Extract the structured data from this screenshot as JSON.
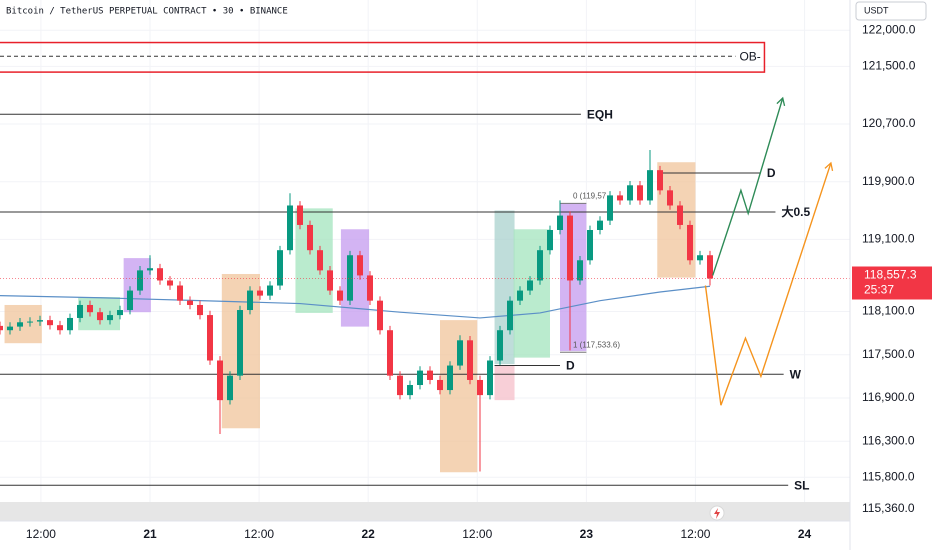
{
  "chart_data": {
    "type": "candlestick",
    "title": "Bitcoin / TetherUS PERPETUAL CONTRACT • 30 • BINANCE",
    "currency": "USDT",
    "up_color": "#089981",
    "down_color": "#f23645",
    "xlim": [
      -16.5,
      77
    ],
    "ylim": [
      115180,
      122420
    ],
    "xticks": [
      {
        "value": -12,
        "label": "12:00"
      },
      {
        "value": 0,
        "label": "21"
      },
      {
        "value": 12,
        "label": "12:00"
      },
      {
        "value": 24,
        "label": "22"
      },
      {
        "value": 36,
        "label": "12:00"
      },
      {
        "value": 48,
        "label": "23"
      },
      {
        "value": 60,
        "label": "12:00"
      },
      {
        "value": 72,
        "label": "24"
      }
    ],
    "yticks": [
      {
        "value": 122000,
        "label": "122,000.0"
      },
      {
        "value": 121500,
        "label": "121,500.0"
      },
      {
        "value": 120700,
        "label": "120,700.0"
      },
      {
        "value": 119900,
        "label": "119,900.0"
      },
      {
        "value": 119100,
        "label": "119,100.0"
      },
      {
        "value": 118100,
        "label": "118,100.0"
      },
      {
        "value": 117500,
        "label": "117,500.0"
      },
      {
        "value": 116900,
        "label": "116,900.0"
      },
      {
        "value": 116300,
        "label": "116,300.0"
      },
      {
        "value": 115800,
        "label": "115,800.0"
      },
      {
        "value": 115360,
        "label": "115,360.0"
      }
    ],
    "grid": true,
    "x": [
      -16.5,
      -15.4,
      -14.3,
      -13.2,
      -12.1,
      -11,
      -9.9,
      -8.8,
      -7.7,
      -6.6,
      -5.5,
      -4.4,
      -3.3,
      -2.2,
      -1.1,
      0,
      1.1,
      2.2,
      3.3,
      4.4,
      5.5,
      6.6,
      7.7,
      8.8,
      9.9,
      11,
      12.1,
      13.2,
      14.3,
      15.4,
      16.5,
      17.6,
      18.7,
      19.8,
      20.9,
      22,
      23.1,
      24.2,
      25.3,
      26.4,
      27.5,
      28.6,
      29.7,
      30.8,
      31.9,
      33,
      34.1,
      35.2,
      36.3,
      37.4,
      38.5,
      39.6,
      40.7,
      41.8,
      42.9,
      44,
      45.1,
      46.2,
      47.3,
      48.4,
      49.5,
      50.6,
      51.7,
      52.8,
      53.9,
      55,
      56.1,
      57.2,
      58.3,
      59.4,
      60.5,
      61.6
    ],
    "open": [
      117900,
      117840,
      117890,
      117950,
      117960,
      117980,
      117910,
      117840,
      118010,
      118190,
      118090,
      117980,
      118050,
      118120,
      118390,
      118670,
      118700,
      118530,
      118460,
      118250,
      118190,
      118050,
      117420,
      116870,
      117210,
      118120,
      118390,
      118320,
      118460,
      118950,
      119570,
      119300,
      118950,
      118670,
      118390,
      118250,
      118880,
      118600,
      118250,
      117840,
      117210,
      116940,
      117080,
      117280,
      117150,
      117010,
      117350,
      117700,
      117150,
      116940,
      117420,
      117840,
      118250,
      118390,
      118530,
      118950,
      119230,
      119430,
      118530,
      118810,
      119230,
      119360,
      119710,
      119640,
      119850,
      119640,
      120060,
      119780,
      119570,
      119300,
      118810,
      118880
    ],
    "high": [
      117960,
      117950,
      118010,
      118020,
      118040,
      118040,
      117970,
      118070,
      118250,
      118250,
      118150,
      118110,
      118180,
      118450,
      118730,
      118880,
      118760,
      118590,
      118520,
      118310,
      118250,
      118110,
      117480,
      117270,
      118180,
      118450,
      118450,
      118520,
      119010,
      119740,
      119630,
      119360,
      119010,
      118730,
      118450,
      118940,
      118940,
      118660,
      118310,
      117900,
      117270,
      117140,
      117340,
      117340,
      117210,
      117410,
      117770,
      117760,
      117210,
      117480,
      117900,
      118310,
      118450,
      118590,
      119010,
      119290,
      119640,
      119490,
      118870,
      119290,
      119420,
      119770,
      119770,
      119910,
      119910,
      120340,
      120120,
      119840,
      119630,
      119360,
      118940,
      118940
    ],
    "low": [
      117780,
      117780,
      117830,
      117890,
      117900,
      117850,
      117780,
      117780,
      117950,
      118030,
      117920,
      117920,
      117990,
      118060,
      118330,
      118610,
      118470,
      118400,
      118190,
      118130,
      117990,
      117360,
      116400,
      116810,
      117150,
      118060,
      118260,
      118260,
      118400,
      118890,
      119240,
      118890,
      118610,
      118330,
      118190,
      118190,
      118540,
      118190,
      117780,
      117150,
      116880,
      116880,
      117020,
      117090,
      116950,
      116950,
      117290,
      117090,
      115880,
      116880,
      117360,
      117780,
      118190,
      118330,
      118470,
      118890,
      119170,
      117560,
      118470,
      118750,
      119170,
      119300,
      119580,
      119580,
      119580,
      119580,
      119720,
      119510,
      119240,
      118750,
      118750,
      118460
    ],
    "close": [
      117840,
      117890,
      117950,
      117960,
      117980,
      117910,
      117840,
      118010,
      118190,
      118090,
      117980,
      118050,
      118120,
      118390,
      118670,
      118700,
      118530,
      118460,
      118250,
      118190,
      118050,
      117420,
      116870,
      117210,
      118120,
      118390,
      118320,
      118460,
      118950,
      119570,
      119300,
      118950,
      118670,
      118390,
      118250,
      118880,
      118600,
      118250,
      117840,
      117210,
      116940,
      117080,
      117280,
      117150,
      117010,
      117350,
      117700,
      117150,
      116940,
      117420,
      117840,
      118250,
      118390,
      118530,
      118950,
      119230,
      119430,
      118530,
      118810,
      119230,
      119360,
      119710,
      119640,
      119850,
      119640,
      120060,
      119780,
      119570,
      119300,
      118810,
      118880,
      118557.3
    ],
    "ma": {
      "color": "#5b8fc7",
      "x": [
        -16.5,
        -5.5,
        5.5,
        16.5,
        27.5,
        36.3,
        42.9,
        49.5,
        56.1,
        61.6
      ],
      "values": [
        118320,
        118290,
        118250,
        118210,
        118090,
        118010,
        118080,
        118250,
        118370,
        118450
      ]
    },
    "zones": [
      {
        "x": [
          -16,
          -11.9
        ],
        "y": [
          117660,
          118190
        ],
        "color": "#f0c49b"
      },
      {
        "x": [
          -7.9,
          -3.3
        ],
        "y": [
          117840,
          118300
        ],
        "color": "#a3e4be"
      },
      {
        "x": [
          -2.9,
          0.1
        ],
        "y": [
          118090,
          118840
        ],
        "color": "#c49bef"
      },
      {
        "x": [
          7.9,
          12.1
        ],
        "y": [
          116480,
          118620
        ],
        "color": "#f0c49b"
      },
      {
        "x": [
          16,
          20.1
        ],
        "y": [
          118080,
          119530
        ],
        "color": "#a3e4be"
      },
      {
        "x": [
          21,
          24.1
        ],
        "y": [
          117890,
          119240
        ],
        "color": "#c49bef"
      },
      {
        "x": [
          31.9,
          36
        ],
        "y": [
          115870,
          117980
        ],
        "color": "#f0c49b"
      },
      {
        "x": [
          37.9,
          40.1
        ],
        "y": [
          117370,
          119500
        ],
        "color": "#a9d1cd"
      },
      {
        "x": [
          37.9,
          40.1
        ],
        "y": [
          116870,
          117350
        ],
        "color": "#f6bfca"
      },
      {
        "x": [
          40,
          44
        ],
        "y": [
          117460,
          119240
        ],
        "color": "#a3e4be"
      },
      {
        "x": [
          45.1,
          48
        ],
        "y": [
          117550,
          119600
        ],
        "color": "#c49bef"
      },
      {
        "x": [
          55.8,
          60
        ],
        "y": [
          118570,
          120170
        ],
        "color": "#f0c49b"
      }
    ],
    "ob": {
      "label": "OB-",
      "y": [
        121420,
        121830
      ],
      "mid": 121640,
      "x": [
        -16.5,
        67.7
      ]
    },
    "levels": [
      {
        "label": "EQH",
        "value": 120835,
        "from": -16.5,
        "to": 47.4
      },
      {
        "label": "D",
        "value": 120020,
        "from": 56.1,
        "to": 67.2
      },
      {
        "label": "大0.5",
        "value": 119480,
        "from": -16.5,
        "to": 68.8
      },
      {
        "label": "D",
        "value": 117350,
        "from": 37.9,
        "to": 45.1
      },
      {
        "label": "W",
        "value": 117230,
        "from": -16.5,
        "to": 69.7
      },
      {
        "label": "SL",
        "value": 115690,
        "from": -16.5,
        "to": 70.2
      }
    ],
    "fib": [
      {
        "label": "0 (119,57",
        "value": 119600,
        "from": 45.1,
        "to": 48
      },
      {
        "label": "1 (117,533.6)",
        "value": 117533.6,
        "from": 45.1,
        "to": 48
      }
    ],
    "projections": [
      {
        "color": "#2e8b57",
        "points": [
          [
            61.9,
            118600
          ],
          [
            65,
            119780
          ],
          [
            65.8,
            119460
          ],
          [
            69.6,
            121060
          ]
        ]
      },
      {
        "color": "#f5941e",
        "points": [
          [
            61.1,
            118460
          ],
          [
            62.8,
            116800
          ],
          [
            65.5,
            117730
          ],
          [
            67.2,
            117200
          ],
          [
            74.9,
            120160
          ]
        ]
      }
    ],
    "last_price": {
      "value": 118557.3,
      "label": "118,557.3"
    },
    "countdown": "25:37"
  }
}
